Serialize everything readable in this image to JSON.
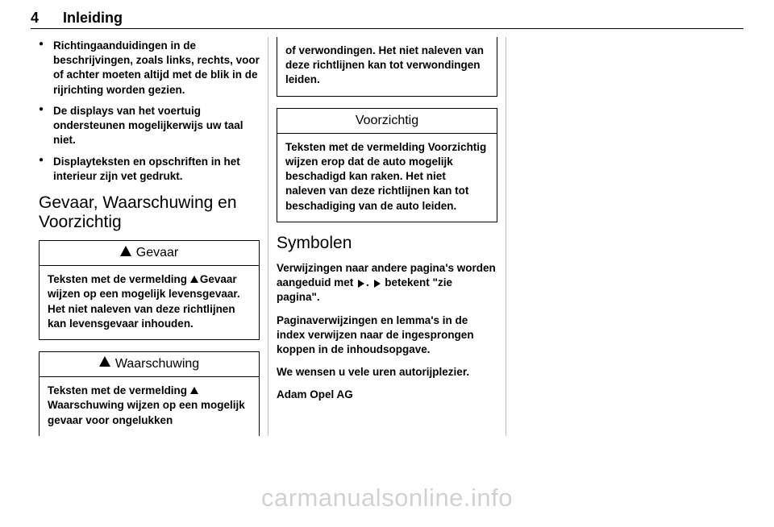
{
  "page": {
    "number": "4",
    "section": "Inleiding"
  },
  "col1": {
    "bullets": [
      "Richtingaanduidingen in de beschrijvingen, zoals links, rechts, voor of achter moeten altijd met de blik in de rijrichting worden gezien.",
      "De displays van het voertuig ondersteunen mogelijkerwijs uw taal niet.",
      "Displayteksten en opschriften in het interieur zijn vet gedrukt."
    ],
    "heading": "Gevaar, Waarschuwing en Voorzichtig",
    "gevaar": {
      "title": "Gevaar",
      "body_prefix": "Teksten met de vermelding ",
      "body_after_icon": "Gevaar wijzen op een mogelijk levensgevaar. Het niet naleven van deze richtlijnen kan levensgevaar inhouden."
    },
    "waarschuwing": {
      "title": "Waarschuwing",
      "body_prefix": "Teksten met de vermelding ",
      "body_after_icon": "Waarschuwing wijzen op een mogelijk gevaar voor ongelukken"
    }
  },
  "col2": {
    "waarschuwing_cont": "of verwondingen. Het niet naleven van deze richtlijnen kan tot verwondingen leiden.",
    "voorzichtig": {
      "title": "Voorzichtig",
      "body": "Teksten met de vermelding Voorzichtig wijzen erop dat de auto mogelijk beschadigd kan raken. Het niet naleven van deze richtlijnen kan tot beschadiging van de auto leiden."
    },
    "symbolen": {
      "heading": "Symbolen",
      "p1a": "Verwijzingen naar andere pagina's worden aangeduid met ",
      "p1b": ". ",
      "p1c": " betekent \"zie pagina\".",
      "p2": "Paginaverwijzingen en lemma's in de index verwijzen naar de ingesprongen koppen in de inhoudsopgave.",
      "p3": "We wensen u vele uren autorijplezier.",
      "signoff": "Adam Opel AG"
    }
  },
  "watermark": "carmanualsonline.info"
}
